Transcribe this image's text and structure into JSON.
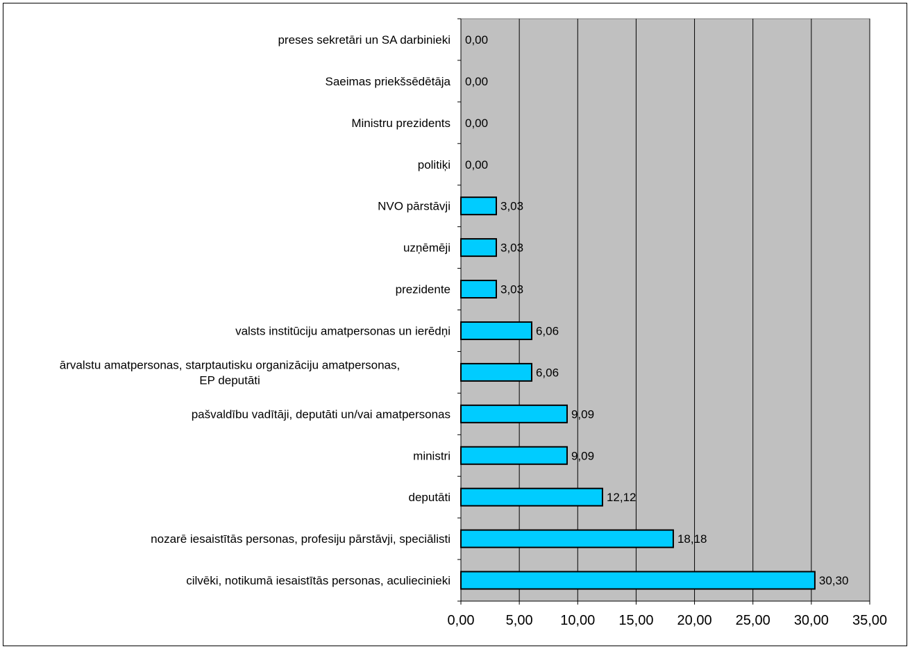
{
  "chart_data": {
    "type": "bar",
    "orientation": "horizontal",
    "categories": [
      "preses sekretāri un SA darbinieki",
      "Saeimas priekšsēdētāja",
      "Ministru prezidents",
      "politiķi",
      "NVO pārstāvji",
      "uzņēmēji",
      "prezidente",
      "valsts institūciju amatpersonas un ierēdņi",
      "ārvalstu amatpersonas, starptautisku organizāciju amatpersonas, EP deputāti",
      "pašvaldību vadītāji, deputāti un/vai amatpersonas",
      "ministri",
      "deputāti",
      "nozarē iesaistītās personas, profesiju pārstāvji, speciālisti",
      "cilvēki, notikumā iesaistītās personas, aculiecinieki"
    ],
    "category_lines": [
      [
        "preses sekretāri un SA darbinieki"
      ],
      [
        "Saeimas priekšsēdētāja"
      ],
      [
        "Ministru prezidents"
      ],
      [
        "politiķi"
      ],
      [
        "NVO pārstāvji"
      ],
      [
        "uzņēmēji"
      ],
      [
        "prezidente"
      ],
      [
        "valsts institūciju amatpersonas un ierēdņi"
      ],
      [
        "ārvalstu amatpersonas, starptautisku organizāciju amatpersonas,",
        "EP deputāti"
      ],
      [
        "pašvaldību vadītāji, deputāti un/vai amatpersonas"
      ],
      [
        "ministri"
      ],
      [
        "deputāti"
      ],
      [
        "nozarē iesaistītās personas, profesiju pārstāvji, speciālisti"
      ],
      [
        "cilvēki, notikumā iesaistītās personas, aculiecinieki"
      ]
    ],
    "values": [
      0.0,
      0.0,
      0.0,
      0.0,
      3.03,
      3.03,
      3.03,
      6.06,
      6.06,
      9.09,
      9.09,
      12.12,
      18.18,
      30.3
    ],
    "data_labels": [
      "0,00",
      "0,00",
      "0,00",
      "0,00",
      "3,03",
      "3,03",
      "3,03",
      "6,06",
      "6,06",
      "9,09",
      "9,09",
      "12,12",
      "18,18",
      "30,30"
    ],
    "xticks": [
      0,
      5,
      10,
      15,
      20,
      25,
      30,
      35
    ],
    "xtick_labels": [
      "0,00",
      "5,00",
      "10,00",
      "15,00",
      "20,00",
      "25,00",
      "30,00",
      "35,00"
    ],
    "xlim": [
      0,
      35
    ],
    "grid": "vertical",
    "legend": "none",
    "title": "",
    "xlabel": "",
    "ylabel": "",
    "colors": {
      "bar_fill": "#00ccff",
      "bar_stroke": "#000000",
      "plot_background": "#c0c0c0",
      "gridline": "#000000"
    }
  }
}
